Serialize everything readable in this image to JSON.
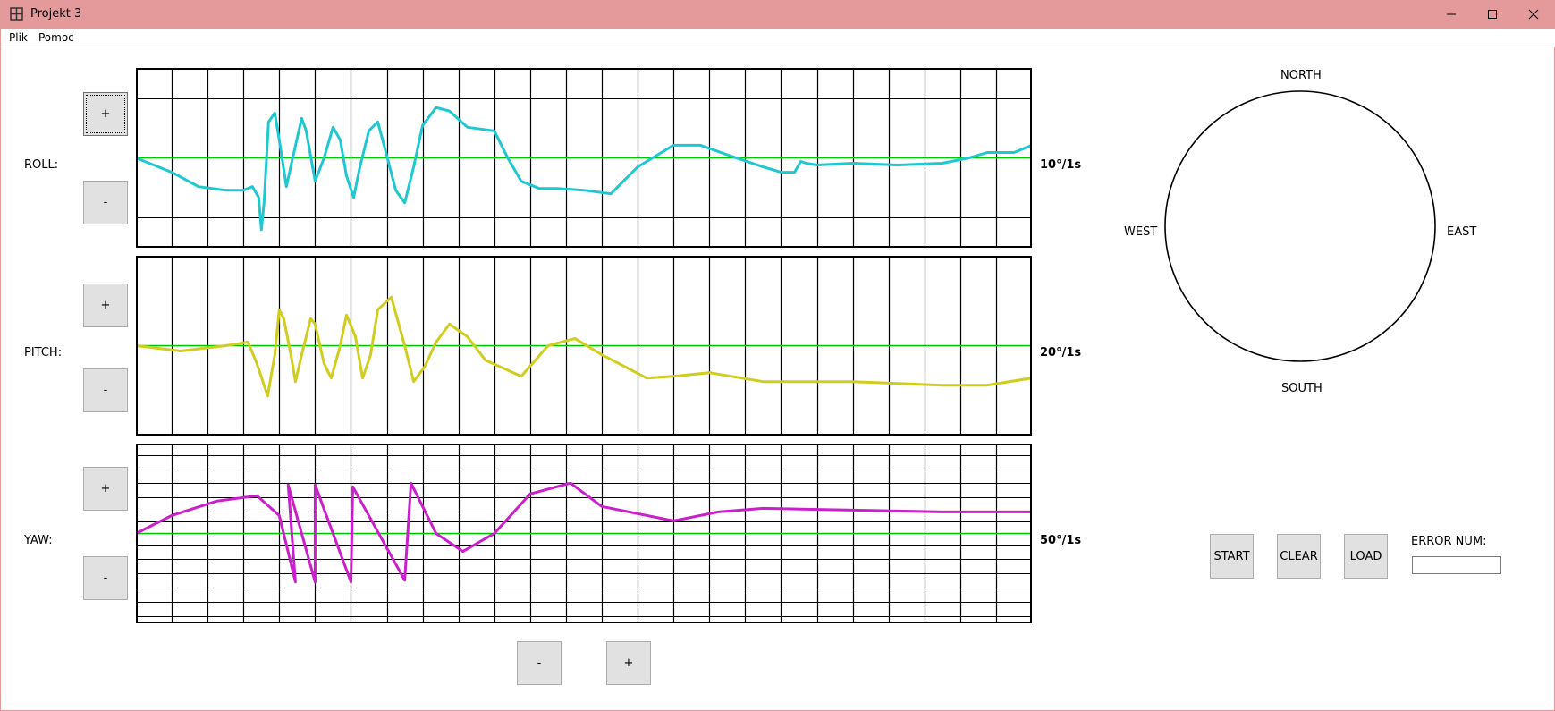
{
  "window": {
    "title": "Projekt 3"
  },
  "menu": [
    "Plik",
    "Pomoc"
  ],
  "plots": [
    {
      "id": "roll",
      "label": "ROLL:",
      "scale": "10°/1s",
      "color": "#1fc8d0",
      "plus_label": "+",
      "minus_label": "-",
      "h_lines": [
        0.17,
        0.83
      ],
      "series": [
        [
          0,
          0.5
        ],
        [
          0.01,
          0.52
        ],
        [
          0.04,
          0.58
        ],
        [
          0.07,
          0.66
        ],
        [
          0.1,
          0.68
        ],
        [
          0.12,
          0.68
        ],
        [
          0.13,
          0.66
        ],
        [
          0.137,
          0.72
        ],
        [
          0.14,
          0.9
        ],
        [
          0.143,
          0.75
        ],
        [
          0.148,
          0.3
        ],
        [
          0.155,
          0.25
        ],
        [
          0.16,
          0.4
        ],
        [
          0.168,
          0.66
        ],
        [
          0.175,
          0.5
        ],
        [
          0.185,
          0.28
        ],
        [
          0.19,
          0.35
        ],
        [
          0.2,
          0.63
        ],
        [
          0.21,
          0.5
        ],
        [
          0.22,
          0.33
        ],
        [
          0.228,
          0.4
        ],
        [
          0.235,
          0.6
        ],
        [
          0.243,
          0.72
        ],
        [
          0.25,
          0.55
        ],
        [
          0.26,
          0.35
        ],
        [
          0.27,
          0.3
        ],
        [
          0.278,
          0.45
        ],
        [
          0.29,
          0.68
        ],
        [
          0.3,
          0.75
        ],
        [
          0.31,
          0.55
        ],
        [
          0.32,
          0.32
        ],
        [
          0.335,
          0.22
        ],
        [
          0.35,
          0.24
        ],
        [
          0.37,
          0.33
        ],
        [
          0.4,
          0.35
        ],
        [
          0.415,
          0.5
        ],
        [
          0.43,
          0.63
        ],
        [
          0.45,
          0.67
        ],
        [
          0.47,
          0.67
        ],
        [
          0.5,
          0.68
        ],
        [
          0.53,
          0.7
        ],
        [
          0.56,
          0.55
        ],
        [
          0.6,
          0.43
        ],
        [
          0.63,
          0.43
        ],
        [
          0.67,
          0.5
        ],
        [
          0.7,
          0.55
        ],
        [
          0.72,
          0.58
        ],
        [
          0.735,
          0.58
        ],
        [
          0.742,
          0.52
        ],
        [
          0.748,
          0.53
        ],
        [
          0.76,
          0.54
        ],
        [
          0.8,
          0.53
        ],
        [
          0.85,
          0.54
        ],
        [
          0.9,
          0.53
        ],
        [
          0.93,
          0.5
        ],
        [
          0.95,
          0.47
        ],
        [
          0.98,
          0.47
        ],
        [
          1.0,
          0.43
        ]
      ]
    },
    {
      "id": "pitch",
      "label": "PITCH:",
      "scale": "20°/1s",
      "color": "#d0cd1f",
      "plus_label": "+",
      "minus_label": "-",
      "h_lines": [],
      "series": [
        [
          0,
          0.5
        ],
        [
          0.05,
          0.53
        ],
        [
          0.1,
          0.5
        ],
        [
          0.125,
          0.48
        ],
        [
          0.135,
          0.6
        ],
        [
          0.147,
          0.78
        ],
        [
          0.155,
          0.55
        ],
        [
          0.16,
          0.3
        ],
        [
          0.165,
          0.35
        ],
        [
          0.173,
          0.55
        ],
        [
          0.178,
          0.7
        ],
        [
          0.185,
          0.55
        ],
        [
          0.195,
          0.35
        ],
        [
          0.2,
          0.38
        ],
        [
          0.21,
          0.6
        ],
        [
          0.218,
          0.68
        ],
        [
          0.228,
          0.5
        ],
        [
          0.235,
          0.33
        ],
        [
          0.245,
          0.45
        ],
        [
          0.253,
          0.68
        ],
        [
          0.262,
          0.55
        ],
        [
          0.27,
          0.3
        ],
        [
          0.285,
          0.23
        ],
        [
          0.3,
          0.5
        ],
        [
          0.31,
          0.7
        ],
        [
          0.322,
          0.62
        ],
        [
          0.335,
          0.48
        ],
        [
          0.35,
          0.38
        ],
        [
          0.37,
          0.45
        ],
        [
          0.39,
          0.58
        ],
        [
          0.43,
          0.67
        ],
        [
          0.46,
          0.5
        ],
        [
          0.49,
          0.46
        ],
        [
          0.52,
          0.55
        ],
        [
          0.57,
          0.68
        ],
        [
          0.6,
          0.67
        ],
        [
          0.64,
          0.65
        ],
        [
          0.7,
          0.7
        ],
        [
          0.8,
          0.7
        ],
        [
          0.9,
          0.72
        ],
        [
          0.95,
          0.72
        ],
        [
          1.0,
          0.68
        ]
      ]
    },
    {
      "id": "yaw",
      "label": "YAW:",
      "scale": "50°/1s",
      "color": "#cc1fcc",
      "plus_label": "+",
      "minus_label": "-",
      "h_lines": [
        0.065,
        0.145,
        0.22,
        0.3,
        0.38,
        0.435,
        0.56,
        0.64,
        0.72,
        0.8,
        0.88,
        0.96
      ],
      "series": [
        [
          0,
          0.5
        ],
        [
          0.04,
          0.4
        ],
        [
          0.09,
          0.32
        ],
        [
          0.135,
          0.29
        ],
        [
          0.16,
          0.4
        ],
        [
          0.178,
          0.77
        ],
        [
          0.17,
          0.23
        ],
        [
          0.2,
          0.77
        ],
        [
          0.2,
          0.23
        ],
        [
          0.24,
          0.77
        ],
        [
          0.242,
          0.24
        ],
        [
          0.3,
          0.76
        ],
        [
          0.307,
          0.22
        ],
        [
          0.335,
          0.5
        ],
        [
          0.365,
          0.6
        ],
        [
          0.4,
          0.5
        ],
        [
          0.44,
          0.28
        ],
        [
          0.485,
          0.22
        ],
        [
          0.52,
          0.35
        ],
        [
          0.6,
          0.43
        ],
        [
          0.65,
          0.38
        ],
        [
          0.7,
          0.36
        ],
        [
          0.8,
          0.37
        ],
        [
          0.9,
          0.38
        ],
        [
          1.0,
          0.38
        ]
      ]
    }
  ],
  "time_controls": {
    "minus_label": "-",
    "plus_label": "+"
  },
  "compass": {
    "north": "NORTH",
    "south": "SOUTH",
    "east": "EAST",
    "west": "WEST"
  },
  "controls": {
    "start": "START",
    "clear": "CLEAR",
    "load": "LOAD",
    "error_label": "ERROR NUM:",
    "error_value": ""
  },
  "colors": {
    "titlebar": "#e49a9b",
    "zero_line": "#00c800",
    "grid": "#000000"
  }
}
